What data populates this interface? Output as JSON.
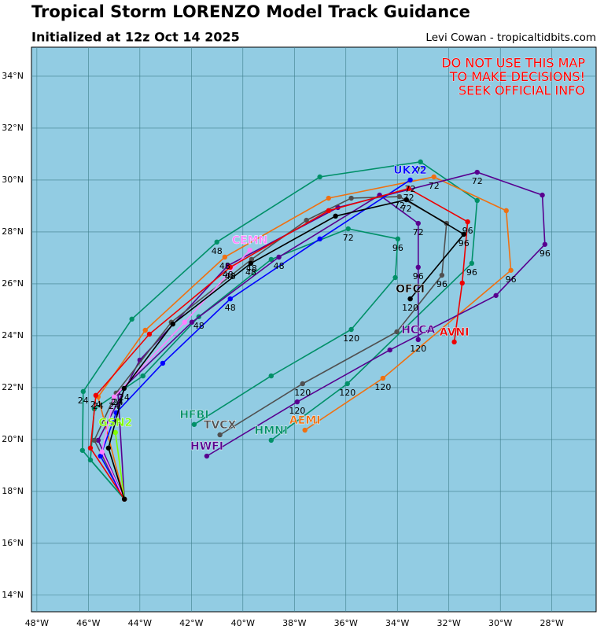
{
  "chart_data": {
    "type": "track",
    "title": "Tropical Storm LORENZO Model Track Guidance",
    "subtitle": "Initialized at 12z Oct 14 2025",
    "credit": "Levi Cowan - tropicaltidbits.com",
    "warning": [
      "DO NOT USE THIS MAP",
      "TO MAKE DECISIONS!",
      "SEEK OFFICIAL INFO"
    ],
    "background": "#92cce3",
    "grid": true,
    "xlim": [
      -48.21,
      -26.28
    ],
    "ylim": [
      13.36,
      35.12
    ],
    "xticks": [
      {
        "value": -48,
        "label": "48°W"
      },
      {
        "value": -46,
        "label": "46°W"
      },
      {
        "value": -44,
        "label": "44°W"
      },
      {
        "value": -42,
        "label": "42°W"
      },
      {
        "value": -40,
        "label": "40°W"
      },
      {
        "value": -38,
        "label": "38°W"
      },
      {
        "value": -36,
        "label": "36°W"
      },
      {
        "value": -34,
        "label": "34°W"
      },
      {
        "value": -32,
        "label": "32°W"
      },
      {
        "value": -30,
        "label": "30°W"
      },
      {
        "value": -28,
        "label": "28°W"
      }
    ],
    "yticks": [
      {
        "value": 14,
        "label": "14°N"
      },
      {
        "value": 16,
        "label": "16°N"
      },
      {
        "value": 18,
        "label": "18°N"
      },
      {
        "value": 20,
        "label": "20°N"
      },
      {
        "value": 22,
        "label": "22°N"
      },
      {
        "value": 24,
        "label": "24°N"
      },
      {
        "value": 26,
        "label": "26°N"
      },
      {
        "value": 28,
        "label": "28°N"
      },
      {
        "value": 30,
        "label": "30°N"
      },
      {
        "value": 32,
        "label": "32°N"
      },
      {
        "value": 34,
        "label": "34°N"
      }
    ],
    "series": [
      {
        "name": "HMNI",
        "color": "#009068",
        "x": [
          -44.6,
          -46.23,
          -46.2,
          -44.31,
          -41.01,
          -37.01,
          -33.1,
          -30.9,
          -31.11,
          -35.94,
          -38.9
        ],
        "y": [
          17.7,
          19.58,
          21.85,
          24.64,
          27.61,
          30.12,
          30.7,
          29.21,
          26.79,
          22.15,
          19.97
        ],
        "point_labels": [
          null,
          null,
          24,
          null,
          48,
          null,
          72,
          null,
          96,
          120,
          null
        ]
      },
      {
        "name": "HFBI",
        "color": "#009068",
        "x": [
          -44.6,
          -45.92,
          -45.77,
          -43.88,
          -41.71,
          -38.9,
          -35.91,
          -33.98,
          -34.08,
          -35.79,
          -38.9,
          -41.89
        ],
        "y": [
          17.7,
          19.21,
          21.18,
          22.45,
          24.73,
          26.94,
          28.12,
          27.73,
          26.24,
          24.24,
          22.45,
          20.58
        ],
        "point_labels": [
          null,
          null,
          null,
          null,
          48,
          null,
          72,
          96,
          null,
          120,
          null,
          null
        ]
      },
      {
        "name": "AEMI",
        "color": "#f07010",
        "x": [
          -44.6,
          -45.62,
          -43.79,
          -40.7,
          -36.67,
          -32.58,
          -29.77,
          -29.59,
          -34.56,
          -37.59
        ],
        "y": [
          17.7,
          21.64,
          24.21,
          27.03,
          29.3,
          30.12,
          28.82,
          26.52,
          22.36,
          20.36
        ],
        "point_labels": [
          null,
          24,
          null,
          48,
          null,
          72,
          null,
          96,
          120,
          null
        ]
      },
      {
        "name": "HWFI",
        "color": "#58008f",
        "x": [
          -44.6,
          -45.62,
          -44.0,
          -40.58,
          -36.31,
          -30.9,
          -28.37,
          -28.27,
          -30.17,
          -34.29,
          -37.89,
          -41.4
        ],
        "y": [
          17.7,
          19.97,
          23.06,
          26.7,
          28.94,
          30.3,
          29.42,
          27.52,
          25.55,
          23.45,
          21.45,
          19.36
        ],
        "point_labels": [
          null,
          null,
          null,
          48,
          null,
          72,
          null,
          96,
          null,
          null,
          120,
          null
        ]
      },
      {
        "name": "HCCA",
        "color": "#58008f",
        "x": [
          -44.6,
          -44.85,
          -41.98,
          -38.6,
          -34.69,
          -33.19,
          -33.19,
          -33.19
        ],
        "y": [
          17.7,
          21.79,
          24.52,
          27.03,
          29.42,
          28.33,
          26.64,
          23.85
        ],
        "point_labels": [
          null,
          24,
          null,
          48,
          null,
          72,
          96,
          120
        ]
      },
      {
        "name": "TVCX",
        "color": "#505050",
        "x": [
          -44.6,
          -45.77,
          -44.92,
          -42.78,
          -39.66,
          -37.53,
          -35.79,
          -33.92,
          -32.09,
          -32.27,
          -34.02,
          -37.68,
          -40.89
        ],
        "y": [
          17.7,
          19.97,
          21.79,
          24.52,
          26.94,
          28.45,
          29.3,
          29.36,
          28.33,
          26.33,
          24.15,
          22.15,
          20.18
        ],
        "point_labels": [
          null,
          null,
          24,
          null,
          48,
          null,
          null,
          72,
          null,
          96,
          null,
          120,
          null
        ]
      },
      {
        "name": "UKX2",
        "color": "#0000ff",
        "x": [
          -44.6,
          -45.53,
          -44.92,
          -43.11,
          -40.49,
          -37.01,
          -33.5
        ],
        "y": [
          17.7,
          19.36,
          21.03,
          22.94,
          25.42,
          27.73,
          30.0
        ],
        "point_labels": [
          null,
          null,
          24,
          null,
          48,
          null,
          72
        ]
      },
      {
        "name": "CEMN",
        "color": "#ff80ff",
        "x": [
          -44.6,
          -45.47,
          -45.0,
          -42.26,
          -39.73
        ],
        "y": [
          17.7,
          19.52,
          21.64,
          24.52,
          27.3
        ],
        "point_labels": [
          null,
          null,
          24,
          null,
          null
        ]
      },
      {
        "name": "GSN2",
        "color": "#80ff00",
        "x": [
          -44.6,
          -44.95
        ],
        "y": [
          17.7,
          20.27
        ],
        "point_labels": [
          null,
          null
        ]
      },
      {
        "name": "AVNI",
        "color": "#ee0000",
        "x": [
          -44.6,
          -45.92,
          -45.71,
          -43.63,
          -40.49,
          -36.67,
          -33.56,
          -31.27,
          -31.48,
          -31.79
        ],
        "y": [
          17.7,
          19.67,
          21.7,
          24.06,
          26.64,
          28.82,
          29.67,
          28.39,
          26.03,
          23.76
        ],
        "point_labels": [
          null,
          null,
          24,
          null,
          48,
          null,
          72,
          96,
          null,
          null
        ]
      },
      {
        "name": "OFCI",
        "color": "#000000",
        "x": [
          -44.6,
          -45.22,
          -44.61,
          -42.72,
          -39.69,
          -36.4,
          -33.65,
          -31.42,
          -33.5
        ],
        "y": [
          17.7,
          19.67,
          21.97,
          24.45,
          26.79,
          28.61,
          29.24,
          27.91,
          25.42
        ],
        "point_labels": [
          null,
          null,
          24,
          null,
          48,
          null,
          72,
          96,
          120
        ]
      }
    ]
  }
}
